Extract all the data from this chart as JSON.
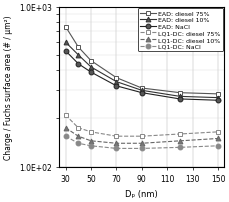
{
  "x": [
    30,
    40,
    50,
    70,
    90,
    120,
    150
  ],
  "EAD_diesel75": [
    750,
    560,
    460,
    360,
    310,
    290,
    285
  ],
  "EAD_diesel10": [
    600,
    500,
    420,
    340,
    300,
    275,
    270
  ],
  "EAD_NaCl": [
    530,
    440,
    390,
    320,
    290,
    265,
    260
  ],
  "LQ1_diesel75": [
    210,
    175,
    165,
    155,
    155,
    160,
    165
  ],
  "LQ1_diesel10": [
    175,
    155,
    145,
    140,
    140,
    145,
    150
  ],
  "LQ1_NaCl": [
    155,
    140,
    135,
    130,
    130,
    132,
    135
  ],
  "ylabel": "Charge / Fuchs surface area (# / μm²)",
  "xlabel": "Dₚ (nm)",
  "xlim": [
    25,
    155
  ],
  "legend_labels": [
    "EAD: diesel 75%",
    "EAD: diesel 10%",
    "EAD: NaCl",
    "LQ1-DC: diesel 75%",
    "LQ1-DC: diesel 10%",
    "LQ1-DC: NaCl"
  ],
  "color_EAD": "#555555",
  "color_LQ1": "#888888",
  "ytick_labels": [
    "1.0E+02",
    "1.0E+03"
  ]
}
